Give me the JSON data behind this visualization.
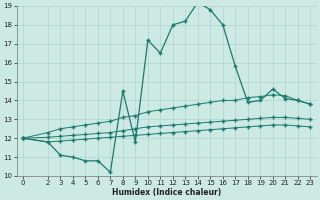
{
  "title": "",
  "xlabel": "Humidex (Indice chaleur)",
  "ylabel": "",
  "bg_color": "#cce9e3",
  "grid_color": "#b0d4cc",
  "line_color": "#1a7a6e",
  "xlim": [
    -0.5,
    23.5
  ],
  "ylim": [
    10,
    19
  ],
  "yticks": [
    10,
    11,
    12,
    13,
    14,
    15,
    16,
    17,
    18,
    19
  ],
  "xticks": [
    0,
    2,
    3,
    4,
    5,
    6,
    7,
    8,
    9,
    10,
    11,
    12,
    13,
    14,
    15,
    16,
    17,
    18,
    19,
    20,
    21,
    22,
    23
  ],
  "series_main": {
    "x": [
      0,
      2,
      3,
      4,
      5,
      6,
      7,
      8,
      9,
      10,
      11,
      12,
      13,
      14,
      15,
      16,
      17,
      18,
      19,
      20,
      21,
      22,
      23
    ],
    "y": [
      12.0,
      11.8,
      11.1,
      11.0,
      10.8,
      10.8,
      10.2,
      14.5,
      11.8,
      17.2,
      16.5,
      18.0,
      18.2,
      19.2,
      18.8,
      18.0,
      15.8,
      13.9,
      14.0,
      14.6,
      14.1,
      14.0,
      13.8
    ]
  },
  "series_max": {
    "x": [
      0,
      2,
      3,
      4,
      5,
      6,
      7,
      8,
      9,
      10,
      11,
      12,
      13,
      14,
      15,
      16,
      17,
      18,
      19,
      20,
      21,
      22,
      23
    ],
    "y": [
      12.0,
      12.3,
      12.5,
      12.6,
      12.7,
      12.8,
      12.9,
      13.1,
      13.2,
      13.4,
      13.5,
      13.6,
      13.7,
      13.8,
      13.9,
      14.0,
      14.0,
      14.15,
      14.2,
      14.3,
      14.25,
      14.0,
      13.8
    ]
  },
  "series_mean": {
    "x": [
      0,
      2,
      3,
      4,
      5,
      6,
      7,
      8,
      9,
      10,
      11,
      12,
      13,
      14,
      15,
      16,
      17,
      18,
      19,
      20,
      21,
      22,
      23
    ],
    "y": [
      12.0,
      12.05,
      12.1,
      12.15,
      12.2,
      12.25,
      12.3,
      12.4,
      12.5,
      12.6,
      12.65,
      12.7,
      12.75,
      12.8,
      12.85,
      12.9,
      12.95,
      13.0,
      13.05,
      13.1,
      13.1,
      13.05,
      13.0
    ]
  },
  "series_min": {
    "x": [
      0,
      2,
      3,
      4,
      5,
      6,
      7,
      8,
      9,
      10,
      11,
      12,
      13,
      14,
      15,
      16,
      17,
      18,
      19,
      20,
      21,
      22,
      23
    ],
    "y": [
      12.0,
      11.8,
      11.85,
      11.9,
      11.95,
      12.0,
      12.05,
      12.1,
      12.15,
      12.2,
      12.25,
      12.3,
      12.35,
      12.4,
      12.45,
      12.5,
      12.55,
      12.6,
      12.65,
      12.7,
      12.7,
      12.65,
      12.6
    ]
  }
}
